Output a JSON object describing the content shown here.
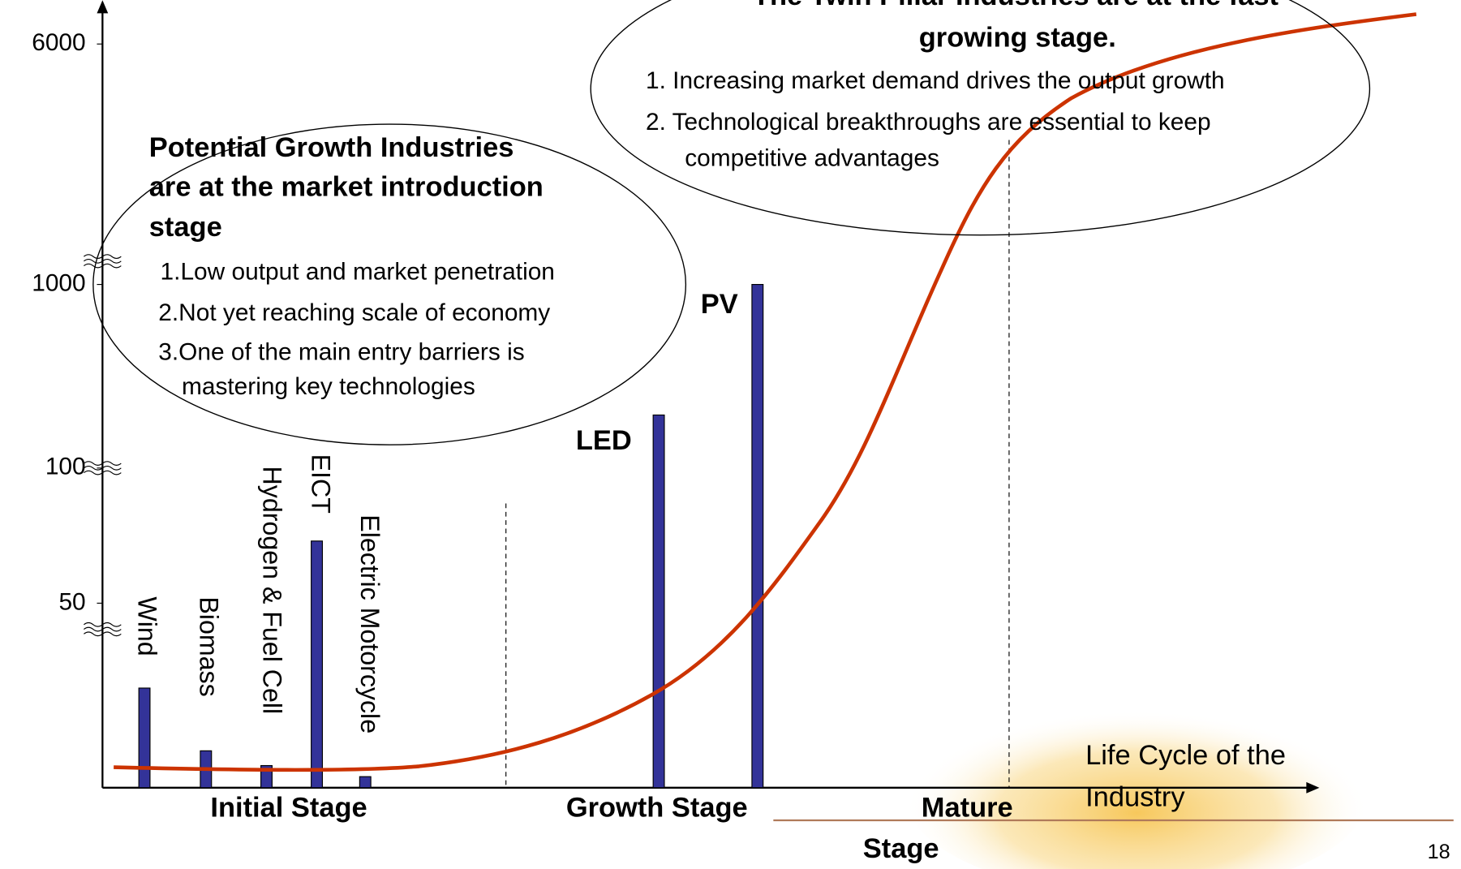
{
  "chart_data": {
    "type": "bar",
    "categories": [
      "Wind",
      "Biomass",
      "Hydrogen & Fuel Cell",
      "EICT",
      "Electric Motorcycle",
      "LED",
      "PV"
    ],
    "values": [
      27,
      10,
      6,
      73,
      3,
      360,
      1000
    ],
    "color": "#333399",
    "ylim": [
      0,
      6000
    ],
    "yticks": [
      50,
      100,
      1000,
      6000
    ],
    "x_axis_label": [
      "Life Cycle of the",
      "Industry"
    ],
    "stages": [
      "Initial Stage",
      "Growth Stage",
      "Mature",
      "Stage"
    ],
    "annotations": [
      {
        "title": [
          "Potential Growth Industries",
          "are at the market introduction",
          "stage"
        ],
        "items": [
          "1.Low output and market penetration",
          "2.Not yet reaching scale of economy",
          "3.One of the main entry barriers is",
          "mastering key technologies"
        ]
      },
      {
        "title": [
          "The Twin Pillar Industries are at the fast",
          "growing stage."
        ],
        "items": [
          "1. Increasing market demand drives the output growth",
          "2. Technological breakthroughs are essential to keep",
          "competitive advantages"
        ]
      }
    ],
    "page_number": "18"
  }
}
